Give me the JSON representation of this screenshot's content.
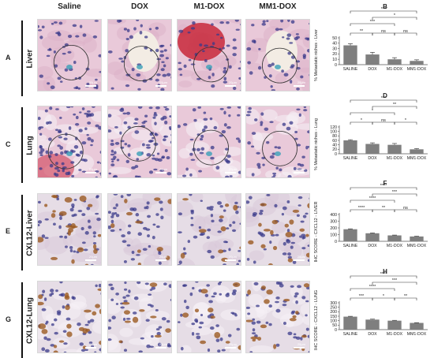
{
  "columns": [
    "Saline",
    "DOX",
    "M1-DOX",
    "MM1-DOX"
  ],
  "rows": [
    {
      "letter": "A",
      "name": "Liver",
      "tissue": "liver-he"
    },
    {
      "letter": "C",
      "name": "Lung",
      "tissue": "lung-he"
    },
    {
      "letter": "E",
      "name": "CXL12-Liver",
      "tissue": "liver-ihc"
    },
    {
      "letter": "G",
      "name": "CXL12-Lung",
      "tissue": "lung-ihc"
    }
  ],
  "scale_label": "20μm",
  "colors": {
    "bar": "#7f7f7f",
    "he_bg": "#e9c9d9",
    "ihc_bg": "#e6dde6",
    "nucleus": "#3a3a8a",
    "brown": "#9b5a22"
  },
  "chart_data": [
    {
      "panel": "B",
      "type": "bar",
      "categories": [
        "SALINE",
        "DOX",
        "M1-DOX",
        "MM1-DOX"
      ],
      "values": [
        36,
        19,
        10,
        7
      ],
      "errors": [
        3,
        4,
        3,
        2
      ],
      "ylabel": "% Metastatic niches - Liver",
      "ylim": [
        0,
        50
      ],
      "yticks": [
        0,
        10,
        20,
        30,
        40,
        50
      ],
      "significance": [
        {
          "from": 0,
          "to": 1,
          "label": "**"
        },
        {
          "from": 1,
          "to": 2,
          "label": "ns"
        },
        {
          "from": 2,
          "to": 3,
          "label": "ns"
        },
        {
          "from": 0,
          "to": 2,
          "label": "***"
        },
        {
          "from": 1,
          "to": 3,
          "label": "*"
        },
        {
          "from": 0,
          "to": 3,
          "label": "***"
        }
      ]
    },
    {
      "panel": "D",
      "type": "bar",
      "categories": [
        "SALINE",
        "DOX",
        "M1-DOX",
        "MM1-DOX"
      ],
      "values": [
        60,
        44,
        40,
        20
      ],
      "errors": [
        3,
        5,
        6,
        3
      ],
      "ylabel": "% Metastatic niches - Lung",
      "ylim": [
        0,
        120
      ],
      "yticks": [
        0,
        20,
        40,
        60,
        80,
        100,
        120
      ],
      "significance": [
        {
          "from": 0,
          "to": 1,
          "label": "*"
        },
        {
          "from": 1,
          "to": 2,
          "label": "ns"
        },
        {
          "from": 2,
          "to": 3,
          "label": "*"
        },
        {
          "from": 0,
          "to": 2,
          "label": "*"
        },
        {
          "from": 1,
          "to": 3,
          "label": "**"
        },
        {
          "from": 0,
          "to": 3,
          "label": "***"
        }
      ]
    },
    {
      "panel": "F",
      "type": "bar",
      "categories": [
        "SALINE",
        "DOX",
        "M1-DOX",
        "MM1-DOX"
      ],
      "values": [
        180,
        120,
        88,
        72
      ],
      "errors": [
        6,
        6,
        5,
        4
      ],
      "ylabel": "IHC SCORE - CXCL12 - LIVER",
      "ylim": [
        0,
        400
      ],
      "yticks": [
        0,
        100,
        200,
        300,
        400
      ],
      "significance": [
        {
          "from": 0,
          "to": 1,
          "label": "****"
        },
        {
          "from": 1,
          "to": 2,
          "label": "**"
        },
        {
          "from": 2,
          "to": 3,
          "label": "ns"
        },
        {
          "from": 0,
          "to": 2,
          "label": "****"
        },
        {
          "from": 1,
          "to": 3,
          "label": "***"
        },
        {
          "from": 0,
          "to": 3,
          "label": "****"
        }
      ]
    },
    {
      "panel": "H",
      "type": "bar",
      "categories": [
        "SALINE",
        "DOX",
        "M1-DOX",
        "MM1-DOX"
      ],
      "values": [
        145,
        112,
        100,
        75
      ],
      "errors": [
        4,
        5,
        4,
        3
      ],
      "ylabel": "IHC SCORE - CXCL12 - LUNG",
      "ylim": [
        0,
        300
      ],
      "yticks": [
        0,
        50,
        100,
        150,
        200,
        250,
        300
      ],
      "significance": [
        {
          "from": 0,
          "to": 1,
          "label": "***"
        },
        {
          "from": 1,
          "to": 2,
          "label": "*"
        },
        {
          "from": 2,
          "to": 3,
          "label": "**"
        },
        {
          "from": 0,
          "to": 2,
          "label": "****"
        },
        {
          "from": 1,
          "to": 3,
          "label": "***"
        },
        {
          "from": 0,
          "to": 3,
          "label": "****"
        }
      ]
    }
  ]
}
